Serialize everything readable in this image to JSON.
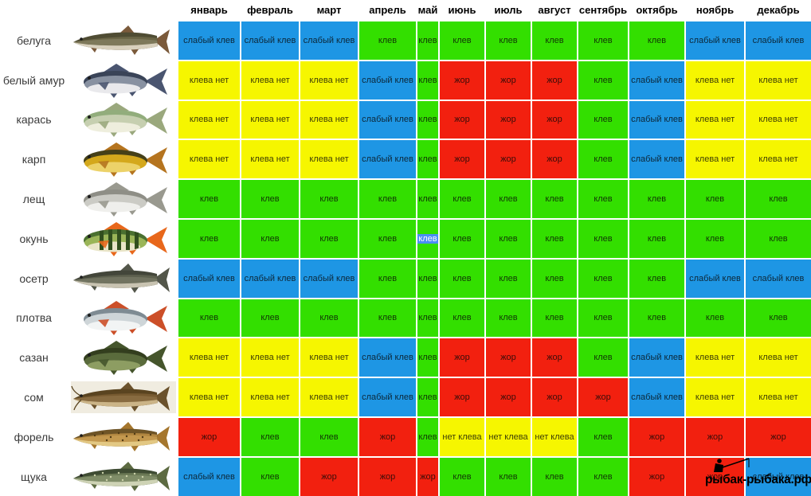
{
  "chart_data": {
    "type": "heatmap",
    "x_labels": [
      "январь",
      "февраль",
      "март",
      "апрель",
      "май",
      "июнь",
      "июль",
      "август",
      "сентябрь",
      "октябрь",
      "ноябрь",
      "декабрь"
    ],
    "y_labels": [
      "белуга",
      "белый амур",
      "карась",
      "карп",
      "лещ",
      "окунь",
      "осетр",
      "плотва",
      "сазан",
      "сом",
      "форель",
      "щука"
    ],
    "values": [
      [
        "слабый клев",
        "слабый клев",
        "слабый клев",
        "клев",
        "клев",
        "клев",
        "клев",
        "клев",
        "клев",
        "клев",
        "слабый клев",
        "слабый клев"
      ],
      [
        "клева нет",
        "клева нет",
        "клева нет",
        "слабый клев",
        "клев",
        "жор",
        "жор",
        "жор",
        "клев",
        "слабый клев",
        "клева нет",
        "клева нет"
      ],
      [
        "клева нет",
        "клева нет",
        "клева нет",
        "слабый клев",
        "клев",
        "жор",
        "жор",
        "жор",
        "клев",
        "слабый клев",
        "клева нет",
        "клева нет"
      ],
      [
        "клева нет",
        "клева нет",
        "клева нет",
        "слабый клев",
        "клев",
        "жор",
        "жор",
        "жор",
        "клев",
        "слабый клев",
        "клева нет",
        "клева нет"
      ],
      [
        "клев",
        "клев",
        "клев",
        "клев",
        "клев",
        "клев",
        "клев",
        "клев",
        "клев",
        "клев",
        "клев",
        "клев"
      ],
      [
        "клев",
        "клев",
        "клев",
        "клев",
        "клев",
        "клев",
        "клев",
        "клев",
        "клев",
        "клев",
        "клев",
        "клев"
      ],
      [
        "слабый клев",
        "слабый клев",
        "слабый клев",
        "клев",
        "клев",
        "клев",
        "клев",
        "клев",
        "клев",
        "клев",
        "слабый клев",
        "слабый клев"
      ],
      [
        "клев",
        "клев",
        "клев",
        "клев",
        "клев",
        "клев",
        "клев",
        "клев",
        "клев",
        "клев",
        "клев",
        "клев"
      ],
      [
        "клева нет",
        "клева нет",
        "клева нет",
        "слабый клев",
        "клев",
        "жор",
        "жор",
        "жор",
        "клев",
        "слабый клев",
        "клева нет",
        "клева нет"
      ],
      [
        "клева нет",
        "клева нет",
        "клева нет",
        "слабый клев",
        "клев",
        "жор",
        "жор",
        "жор",
        "жор",
        "слабый клев",
        "клева нет",
        "клева нет"
      ],
      [
        "жор",
        "клев",
        "клев",
        "жор",
        "клев",
        "нет клева",
        "нет клева",
        "нет клева",
        "клев",
        "жор",
        "жор",
        "жор"
      ],
      [
        "слабый клев",
        "клев",
        "жор",
        "жор",
        "жор",
        "клев",
        "клев",
        "клев",
        "клев",
        "жор",
        "жор",
        "слабый клев"
      ]
    ],
    "legend": {
      "клев": "#33df00",
      "слабый клев": "#1e96e4",
      "клева нет": "#f6f600",
      "нет клева": "#f6f600",
      "жор": "#f2200f"
    }
  },
  "fish_art": [
    {
      "name": "белуга",
      "shape": "long",
      "art": {
        "back": "#4f4c33",
        "body": "#6e6a4a",
        "belly": "#d8d0bd",
        "fin": "#7b5a3b"
      }
    },
    {
      "name": "белый амур",
      "shape": "deep",
      "art": {
        "back": "#3a4458",
        "body": "#8891a1",
        "belly": "#e9e9ec",
        "fin": "#4a5570"
      }
    },
    {
      "name": "карась",
      "shape": "deep",
      "art": {
        "back": "#92ad7c",
        "body": "#c6cfb0",
        "belly": "#eeeedd",
        "fin": "#9aa87d"
      }
    },
    {
      "name": "карп",
      "shape": "deep",
      "art": {
        "back": "#454018",
        "body": "#d4a81c",
        "belly": "#ecd269",
        "fin": "#b5741f"
      }
    },
    {
      "name": "лещ",
      "shape": "deep",
      "art": {
        "back": "#8e8e86",
        "body": "#cbcbc5",
        "belly": "#efefec",
        "fin": "#99998f"
      }
    },
    {
      "name": "окунь",
      "shape": "deep",
      "art": {
        "back": "#4a7030",
        "body": "#9ab558",
        "belly": "#e9e5c8",
        "fin": "#e8671b",
        "stripes": "#314f1e"
      }
    },
    {
      "name": "осетр",
      "shape": "long",
      "art": {
        "back": "#43463a",
        "body": "#626552",
        "belly": "#c8c3b1",
        "fin": "#53564a"
      }
    },
    {
      "name": "плотва",
      "shape": "deep",
      "art": {
        "back": "#7e8b93",
        "body": "#ced5d8",
        "belly": "#f2f4f4",
        "fin": "#cc4f28"
      }
    },
    {
      "name": "сазан",
      "shape": "deep",
      "art": {
        "back": "#333e1e",
        "body": "#5a6b3c",
        "belly": "#8d9d62",
        "fin": "#45552c"
      }
    },
    {
      "name": "сом",
      "shape": "long",
      "art": {
        "back": "#5a4420",
        "body": "#7c5e34",
        "belly": "#cbb487",
        "fin": "#6b522c",
        "whiskers": true,
        "bg": "#f0ece0"
      }
    },
    {
      "name": "форель",
      "shape": "long",
      "art": {
        "back": "#6e5426",
        "body": "#bd8f45",
        "belly": "#e3c883",
        "fin": "#a5762d",
        "spots": "#503a14"
      }
    },
    {
      "name": "щука",
      "shape": "long",
      "art": {
        "back": "#3f4c33",
        "body": "#72805a",
        "belly": "#ced3b5",
        "fin": "#5d6b42",
        "spots": "#cdd3ab"
      }
    }
  ],
  "selection": {
    "fish": "окунь",
    "month": "май",
    "row_index": 5,
    "cell_index": 4,
    "highlight_color": "#4a8ef5"
  },
  "watermark": {
    "text": "рыбак-рыбака.рф"
  }
}
